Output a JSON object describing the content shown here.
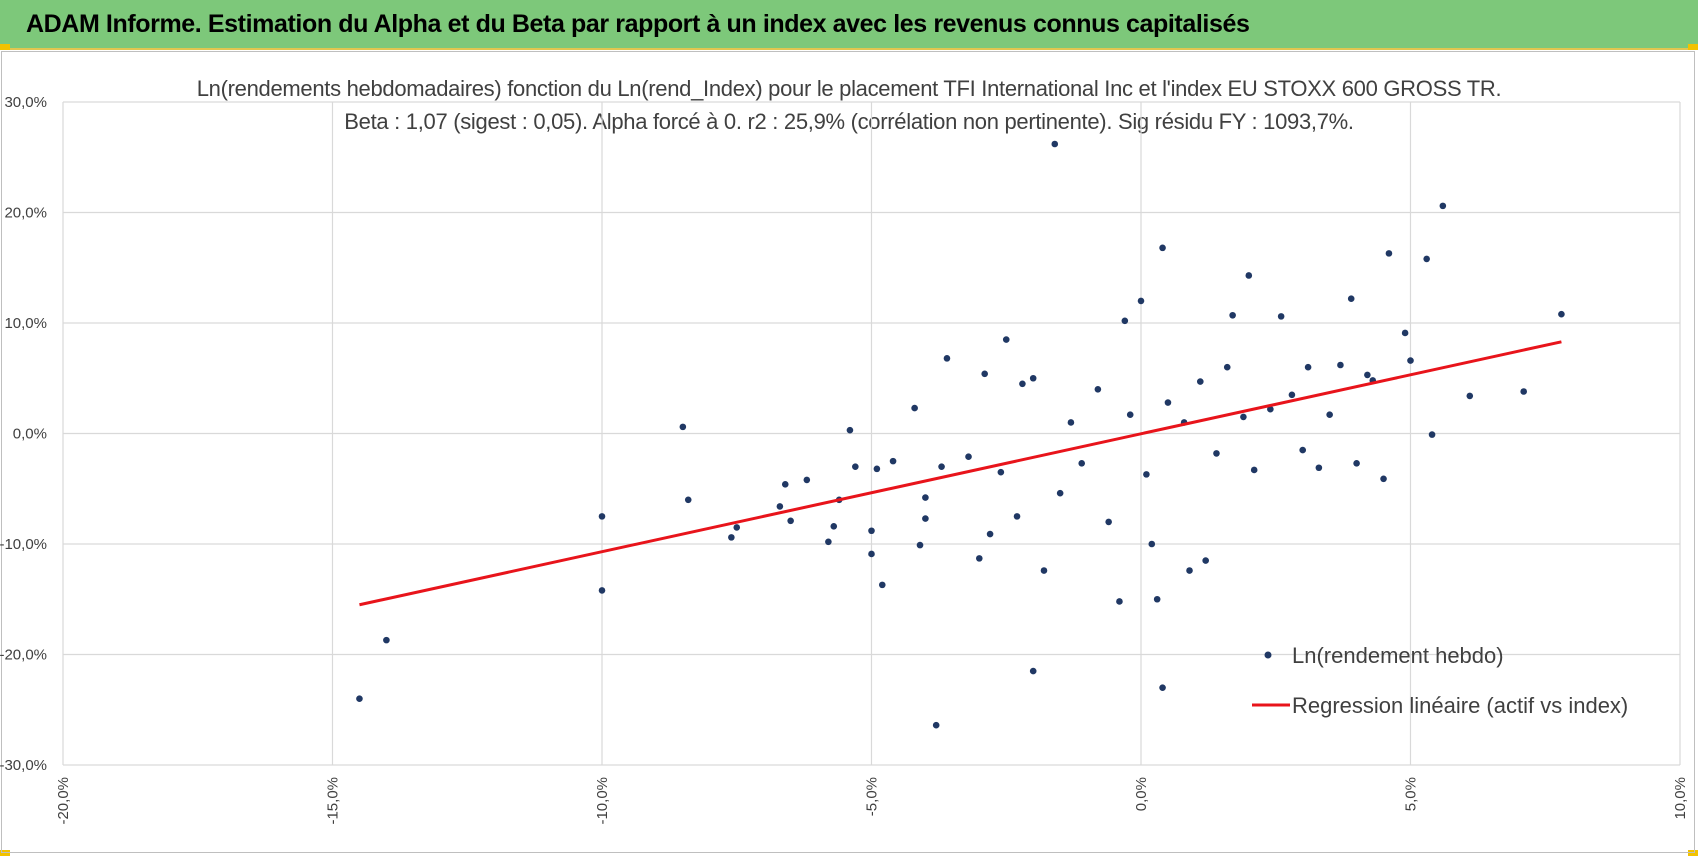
{
  "header": {
    "title": "ADAM Informe. Estimation du Alpha et du Beta par rapport à un index avec les revenus connus capitalisés"
  },
  "colors": {
    "header_bg": "#7dc87a",
    "accent_corner": "#f2c200",
    "point": "#203864",
    "regression": "#e8141b",
    "grid": "#d9d9d9"
  },
  "chart_data": {
    "type": "scatter",
    "title": "Ln(rendements hebdomadaires) fonction du Ln(rend_Index) pour le placement TFI International Inc et l'index EU STOXX 600 GROSS TR.",
    "subtitle": "Beta : 1,07 (sigest : 0,05). Alpha forcé à 0. r2 : 25,9% (corrélation non pertinente). Sig résidu FY : 1093,7%.",
    "xlim": [
      -0.2,
      0.1
    ],
    "ylim": [
      -0.3,
      0.3
    ],
    "x_ticks": [
      "-20,0%",
      "-15,0%",
      "-10,0%",
      "-5,0%",
      "0,0%",
      "5,0%",
      "10,0%"
    ],
    "x_tick_values": [
      -0.2,
      -0.15,
      -0.1,
      -0.05,
      0.0,
      0.05,
      0.1
    ],
    "y_ticks": [
      "30,0%",
      "20,0%",
      "10,0%",
      "0,0%",
      "-10,0%",
      "-20,0%",
      "-30,0%"
    ],
    "y_tick_values": [
      0.3,
      0.2,
      0.1,
      0.0,
      -0.1,
      -0.2,
      -0.3
    ],
    "grid": true,
    "legend_position": "bottom-right",
    "legend": {
      "points_label": "Ln(rendement hebdo)",
      "line_label": "Regression linéaire (actif vs index)"
    },
    "series": [
      {
        "name": "Ln(rendement hebdo)",
        "type": "scatter",
        "points": [
          [
            -0.145,
            -0.24
          ],
          [
            -0.14,
            -0.187
          ],
          [
            -0.1,
            -0.142
          ],
          [
            -0.1,
            -0.075
          ],
          [
            -0.085,
            0.006
          ],
          [
            -0.084,
            -0.06
          ],
          [
            -0.076,
            -0.094
          ],
          [
            -0.075,
            -0.085
          ],
          [
            -0.067,
            -0.066
          ],
          [
            -0.066,
            -0.046
          ],
          [
            -0.065,
            -0.079
          ],
          [
            -0.062,
            -0.042
          ],
          [
            -0.058,
            -0.098
          ],
          [
            -0.057,
            -0.084
          ],
          [
            -0.056,
            -0.06
          ],
          [
            -0.054,
            0.003
          ],
          [
            -0.053,
            -0.03
          ],
          [
            -0.05,
            -0.088
          ],
          [
            -0.05,
            -0.109
          ],
          [
            -0.049,
            -0.032
          ],
          [
            -0.048,
            -0.137
          ],
          [
            -0.046,
            -0.025
          ],
          [
            -0.042,
            0.023
          ],
          [
            -0.041,
            -0.101
          ],
          [
            -0.04,
            -0.058
          ],
          [
            -0.04,
            -0.077
          ],
          [
            -0.038,
            -0.264
          ],
          [
            -0.037,
            -0.03
          ],
          [
            -0.036,
            0.068
          ],
          [
            -0.032,
            -0.021
          ],
          [
            -0.03,
            -0.113
          ],
          [
            -0.029,
            0.054
          ],
          [
            -0.028,
            -0.091
          ],
          [
            -0.026,
            -0.035
          ],
          [
            -0.025,
            0.085
          ],
          [
            -0.023,
            -0.075
          ],
          [
            -0.022,
            0.045
          ],
          [
            -0.02,
            -0.215
          ],
          [
            -0.02,
            0.05
          ],
          [
            -0.018,
            -0.124
          ],
          [
            -0.016,
            0.262
          ],
          [
            -0.015,
            -0.054
          ],
          [
            -0.013,
            0.01
          ],
          [
            -0.011,
            -0.027
          ],
          [
            -0.008,
            0.04
          ],
          [
            -0.006,
            -0.08
          ],
          [
            -0.004,
            -0.152
          ],
          [
            -0.003,
            0.102
          ],
          [
            -0.002,
            0.017
          ],
          [
            0.0,
            0.12
          ],
          [
            0.001,
            -0.037
          ],
          [
            0.002,
            -0.1
          ],
          [
            0.003,
            -0.15
          ],
          [
            0.004,
            -0.23
          ],
          [
            0.004,
            0.168
          ],
          [
            0.005,
            0.028
          ],
          [
            0.008,
            0.01
          ],
          [
            0.009,
            -0.124
          ],
          [
            0.011,
            0.047
          ],
          [
            0.012,
            -0.115
          ],
          [
            0.014,
            -0.018
          ],
          [
            0.016,
            0.06
          ],
          [
            0.017,
            0.107
          ],
          [
            0.019,
            0.015
          ],
          [
            0.02,
            0.143
          ],
          [
            0.021,
            -0.033
          ],
          [
            0.024,
            0.022
          ],
          [
            0.026,
            0.106
          ],
          [
            0.028,
            0.035
          ],
          [
            0.03,
            -0.015
          ],
          [
            0.031,
            0.06
          ],
          [
            0.033,
            -0.031
          ],
          [
            0.035,
            0.017
          ],
          [
            0.037,
            0.062
          ],
          [
            0.039,
            0.122
          ],
          [
            0.04,
            -0.027
          ],
          [
            0.042,
            0.053
          ],
          [
            0.043,
            0.048
          ],
          [
            0.045,
            -0.041
          ],
          [
            0.046,
            0.163
          ],
          [
            0.049,
            0.091
          ],
          [
            0.05,
            0.066
          ],
          [
            0.053,
            0.158
          ],
          [
            0.054,
            -0.001
          ],
          [
            0.056,
            0.206
          ],
          [
            0.061,
            0.034
          ],
          [
            0.071,
            0.038
          ],
          [
            0.078,
            0.108
          ]
        ]
      },
      {
        "name": "Regression linéaire (actif vs index)",
        "type": "line",
        "x": [
          -0.145,
          0.078
        ],
        "y": [
          -0.155,
          0.083
        ]
      }
    ]
  }
}
